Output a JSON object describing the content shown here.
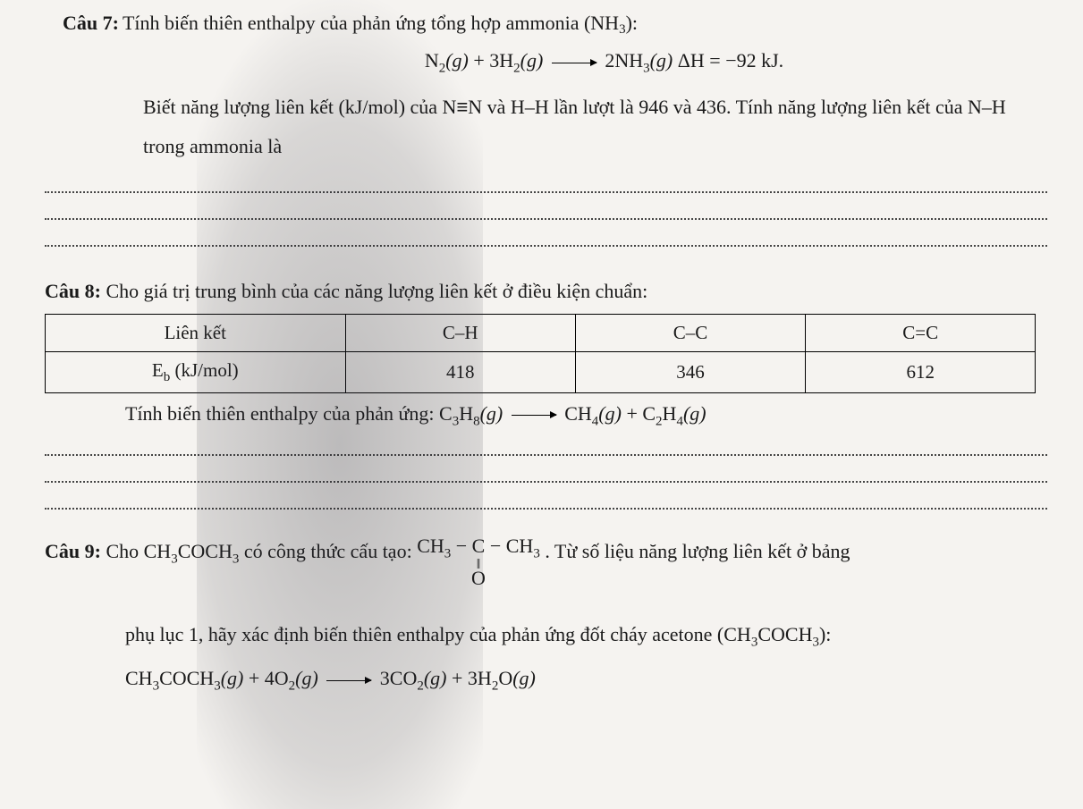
{
  "q7": {
    "label": "Câu 7:",
    "text": " Tính biến thiên enthalpy của phản ứng tổng hợp ammonia (NH",
    "text_sub": "3",
    "text_end": "):",
    "eq_left_a": "N",
    "eq_left_a_sub": "2",
    "eq_left_g1": "(g)",
    "eq_plus1": " + 3H",
    "eq_left_b_sub": "2",
    "eq_left_g2": "(g)",
    "eq_right_a": " 2NH",
    "eq_right_sub": "3",
    "eq_right_g": "(g)",
    "eq_dh": "  ΔH = −92 kJ.",
    "cont1_a": "Biết năng lượng liên kết (kJ/mol) của N",
    "cont1_equiv": "≡",
    "cont1_b": "N và H–H lần lượt là 946 và 436. Tính năng lượng liên kết của N–H trong ammonia là"
  },
  "q8": {
    "label": "Câu 8:",
    "intro": " Cho giá trị trung bình của các năng lượng liên kết ở điều kiện chuẩn:",
    "table": {
      "headers": [
        "Liên kết",
        "C–H",
        "C–C",
        "C=C"
      ],
      "row_label_a": "E",
      "row_label_sub": "b",
      "row_label_b": " (kJ/mol)",
      "values": [
        "418",
        "346",
        "612"
      ]
    },
    "eq_intro": "Tính biến thiên enthalpy của phản ứng: C",
    "eq_s1": "3",
    "eq_a2": "H",
    "eq_s2": "8",
    "eq_g1": "(g)",
    "eq_r1": " CH",
    "eq_rs1": "4",
    "eq_rg1": "(g)",
    "eq_plus": " + C",
    "eq_rs2": "2",
    "eq_r2": "H",
    "eq_rs3": "4",
    "eq_rg2": "(g)"
  },
  "q9": {
    "label": "Câu 9:",
    "text_a": " Cho CH",
    "sub1": "3",
    "text_b": "COCH",
    "sub2": "3",
    "text_c": " có công thức cấu tạo: ",
    "struct_top_a": "CH",
    "struct_top_s1": "3",
    "struct_top_b": " − C − CH",
    "struct_top_s2": "3",
    "struct_mid": "‖",
    "struct_bot": "O",
    "text_d": ". Từ số liệu năng lượng liên kết ở bảng",
    "cont_a": "phụ lục 1, hãy xác định biến thiên enthalpy của phản ứng đốt cháy acetone (CH",
    "cont_s1": "3",
    "cont_b": "COCH",
    "cont_s2": "3",
    "cont_c": "):",
    "eq_l1": "CH",
    "eq_ls1": "3",
    "eq_l2": "COCH",
    "eq_ls2": "3",
    "eq_lg1": "(g)",
    "eq_l3": " + 4O",
    "eq_ls3": "2",
    "eq_lg2": "(g)",
    "eq_r1": " 3CO",
    "eq_rs1": "2",
    "eq_rg1": "(g)",
    "eq_r2": " + 3H",
    "eq_rs2": "2",
    "eq_r3": "O",
    "eq_rg2": "(g)"
  },
  "style": {
    "background_color": "#f5f3f0",
    "text_color": "#1a1a1a",
    "border_color": "#000000",
    "dotted_color": "#444444",
    "font_family": "Times New Roman",
    "base_fontsize": 22
  }
}
